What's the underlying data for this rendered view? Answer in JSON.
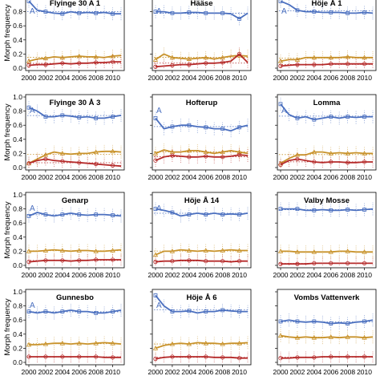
{
  "chart_data": {
    "type": "line",
    "ylabel": "Morph frequency",
    "xlim": [
      2000,
      2011
    ],
    "ylim": [
      0,
      1
    ],
    "x_ticks": [
      2000,
      2002,
      2004,
      2006,
      2008,
      2010
    ],
    "y_ticks": [
      0,
      0.2,
      0.4,
      0.6,
      0.8,
      1.0
    ],
    "y_tick_labels": [
      "0.0",
      "0.2",
      "0.4",
      "0.6",
      "0.8",
      "1.0"
    ],
    "colors": {
      "blue": "#4a6fbf",
      "orange": "#c8922a",
      "red": "#b52a2a"
    },
    "x": [
      2000,
      2001,
      2002,
      2003,
      2004,
      2005,
      2006,
      2007,
      2008,
      2009,
      2010,
      2011
    ],
    "panels": [
      {
        "title": "Flyinge 30 A 1",
        "letter": "A",
        "series": [
          {
            "color": "blue",
            "values": [
              0.95,
              0.82,
              0.8,
              0.78,
              0.77,
              0.8,
              0.78,
              0.79,
              0.78,
              0.79,
              0.77,
              0.77
            ]
          },
          {
            "color": "orange",
            "values": [
              0.1,
              0.13,
              0.14,
              0.16,
              0.15,
              0.16,
              0.17,
              0.16,
              0.16,
              0.15,
              0.17,
              0.18
            ]
          },
          {
            "color": "red",
            "values": [
              0.04,
              0.05,
              0.05,
              0.06,
              0.07,
              0.06,
              0.07,
              0.07,
              0.08,
              0.08,
              0.09,
              0.09
            ]
          }
        ]
      },
      {
        "title": "Hääse",
        "letter": "A",
        "series": [
          {
            "color": "blue",
            "values": [
              0.8,
              0.8,
              0.78,
              0.78,
              0.79,
              0.79,
              0.78,
              0.78,
              0.78,
              0.77,
              0.7,
              0.78
            ]
          },
          {
            "color": "orange",
            "values": [
              0.12,
              0.2,
              0.15,
              0.14,
              0.13,
              0.14,
              0.15,
              0.13,
              0.15,
              0.17,
              0.18,
              0.17
            ]
          },
          {
            "color": "red",
            "values": [
              0.02,
              0.03,
              0.04,
              0.05,
              0.05,
              0.06,
              0.07,
              0.07,
              0.08,
              0.1,
              0.2,
              0.08
            ]
          }
        ]
      },
      {
        "title": "Höje Å 1",
        "letter": "A",
        "series": [
          {
            "color": "blue",
            "values": [
              0.95,
              0.9,
              0.82,
              0.8,
              0.8,
              0.79,
              0.79,
              0.79,
              0.78,
              0.78,
              0.79,
              0.78
            ]
          },
          {
            "color": "orange",
            "values": [
              0.1,
              0.12,
              0.12,
              0.15,
              0.15,
              0.15,
              0.15,
              0.15,
              0.16,
              0.15,
              0.15,
              0.15
            ]
          },
          {
            "color": "red",
            "values": [
              0.03,
              0.04,
              0.05,
              0.05,
              0.05,
              0.05,
              0.06,
              0.06,
              0.06,
              0.06,
              0.06,
              0.06
            ]
          }
        ]
      },
      {
        "title": "Flyinge 30 Å 3",
        "letter": "A",
        "series": [
          {
            "color": "blue",
            "values": [
              0.85,
              0.8,
              0.72,
              0.72,
              0.74,
              0.73,
              0.71,
              0.72,
              0.7,
              0.7,
              0.72,
              0.74
            ]
          },
          {
            "color": "orange",
            "values": [
              0.06,
              0.12,
              0.18,
              0.22,
              0.2,
              0.19,
              0.2,
              0.2,
              0.22,
              0.23,
              0.23,
              0.22
            ]
          },
          {
            "color": "red",
            "values": [
              0.06,
              0.1,
              0.12,
              0.1,
              0.09,
              0.08,
              0.07,
              0.06,
              0.05,
              0.04,
              0.03,
              0.02
            ]
          }
        ]
      },
      {
        "title": "Hofterup",
        "letter": "A",
        "series": [
          {
            "color": "blue",
            "values": [
              0.7,
              0.55,
              0.58,
              0.6,
              0.6,
              0.58,
              0.57,
              0.55,
              0.55,
              0.52,
              0.57,
              0.6
            ]
          },
          {
            "color": "orange",
            "values": [
              0.2,
              0.25,
              0.22,
              0.22,
              0.24,
              0.24,
              0.22,
              0.2,
              0.22,
              0.24,
              0.22,
              0.2
            ]
          },
          {
            "color": "red",
            "values": [
              0.1,
              0.15,
              0.17,
              0.16,
              0.15,
              0.15,
              0.16,
              0.15,
              0.15,
              0.16,
              0.18,
              0.17
            ]
          }
        ]
      },
      {
        "title": "Lomma",
        "letter": "A",
        "series": [
          {
            "color": "blue",
            "values": [
              0.9,
              0.75,
              0.7,
              0.72,
              0.68,
              0.7,
              0.72,
              0.7,
              0.72,
              0.71,
              0.72,
              0.72
            ]
          },
          {
            "color": "orange",
            "values": [
              0.06,
              0.13,
              0.18,
              0.18,
              0.22,
              0.22,
              0.2,
              0.21,
              0.2,
              0.21,
              0.2,
              0.2
            ]
          },
          {
            "color": "red",
            "values": [
              0.04,
              0.1,
              0.12,
              0.1,
              0.08,
              0.07,
              0.08,
              0.08,
              0.07,
              0.07,
              0.08,
              0.08
            ]
          }
        ]
      },
      {
        "title": "Genarp",
        "letter": "A",
        "series": [
          {
            "color": "blue",
            "values": [
              0.7,
              0.75,
              0.72,
              0.7,
              0.72,
              0.74,
              0.72,
              0.71,
              0.72,
              0.72,
              0.71,
              0.7
            ]
          },
          {
            "color": "orange",
            "values": [
              0.2,
              0.2,
              0.21,
              0.22,
              0.21,
              0.2,
              0.21,
              0.21,
              0.2,
              0.2,
              0.21,
              0.22
            ]
          },
          {
            "color": "red",
            "values": [
              0.05,
              0.06,
              0.07,
              0.07,
              0.07,
              0.06,
              0.07,
              0.07,
              0.08,
              0.08,
              0.08,
              0.08
            ]
          }
        ]
      },
      {
        "title": "Höje Å 14",
        "letter": "A",
        "series": [
          {
            "color": "blue",
            "values": [
              0.8,
              0.78,
              0.75,
              0.7,
              0.72,
              0.74,
              0.72,
              0.74,
              0.72,
              0.73,
              0.72,
              0.74
            ]
          },
          {
            "color": "orange",
            "values": [
              0.15,
              0.2,
              0.2,
              0.22,
              0.21,
              0.2,
              0.21,
              0.2,
              0.21,
              0.22,
              0.21,
              0.21
            ]
          },
          {
            "color": "red",
            "values": [
              0.05,
              0.06,
              0.06,
              0.07,
              0.07,
              0.07,
              0.06,
              0.06,
              0.06,
              0.05,
              0.06,
              0.06
            ]
          }
        ]
      },
      {
        "title": "Valby Mosse",
        "letter": "",
        "series": [
          {
            "color": "blue",
            "values": [
              0.8,
              0.8,
              0.8,
              0.78,
              0.78,
              0.79,
              0.78,
              0.78,
              0.79,
              0.78,
              0.79,
              0.8
            ]
          },
          {
            "color": "orange",
            "values": [
              0.2,
              0.2,
              0.19,
              0.19,
              0.19,
              0.19,
              0.19,
              0.2,
              0.2,
              0.19,
              0.19,
              0.19
            ]
          },
          {
            "color": "red",
            "values": [
              0.02,
              0.02,
              0.02,
              0.02,
              0.03,
              0.03,
              0.03,
              0.03,
              0.03,
              0.03,
              0.03,
              0.03
            ]
          }
        ]
      },
      {
        "title": "Gunnesbo",
        "letter": "A",
        "series": [
          {
            "color": "blue",
            "values": [
              0.72,
              0.7,
              0.72,
              0.7,
              0.72,
              0.74,
              0.72,
              0.72,
              0.7,
              0.7,
              0.72,
              0.74
            ]
          },
          {
            "color": "orange",
            "values": [
              0.25,
              0.25,
              0.26,
              0.27,
              0.27,
              0.26,
              0.27,
              0.26,
              0.27,
              0.28,
              0.27,
              0.26
            ]
          },
          {
            "color": "red",
            "values": [
              0.08,
              0.08,
              0.08,
              0.08,
              0.08,
              0.08,
              0.08,
              0.08,
              0.08,
              0.07,
              0.07,
              0.07
            ]
          }
        ]
      },
      {
        "title": "Höje Å 6",
        "letter": "A",
        "series": [
          {
            "color": "blue",
            "values": [
              0.95,
              0.8,
              0.72,
              0.72,
              0.73,
              0.7,
              0.72,
              0.72,
              0.74,
              0.73,
              0.72,
              0.72
            ]
          },
          {
            "color": "orange",
            "values": [
              0.2,
              0.24,
              0.26,
              0.27,
              0.26,
              0.28,
              0.27,
              0.27,
              0.26,
              0.27,
              0.27,
              0.28
            ]
          },
          {
            "color": "red",
            "values": [
              0.05,
              0.07,
              0.08,
              0.08,
              0.08,
              0.08,
              0.08,
              0.07,
              0.07,
              0.07,
              0.06,
              0.06
            ]
          }
        ]
      },
      {
        "title": "Vombs Vattenverk",
        "letter": "",
        "series": [
          {
            "color": "blue",
            "values": [
              0.58,
              0.6,
              0.58,
              0.57,
              0.58,
              0.57,
              0.55,
              0.56,
              0.55,
              0.57,
              0.58,
              0.6
            ]
          },
          {
            "color": "orange",
            "values": [
              0.38,
              0.36,
              0.35,
              0.36,
              0.35,
              0.35,
              0.36,
              0.35,
              0.36,
              0.36,
              0.35,
              0.36
            ]
          },
          {
            "color": "red",
            "values": [
              0.06,
              0.06,
              0.07,
              0.07,
              0.07,
              0.08,
              0.08,
              0.08,
              0.08,
              0.08,
              0.08,
              0.08
            ]
          }
        ]
      }
    ]
  }
}
